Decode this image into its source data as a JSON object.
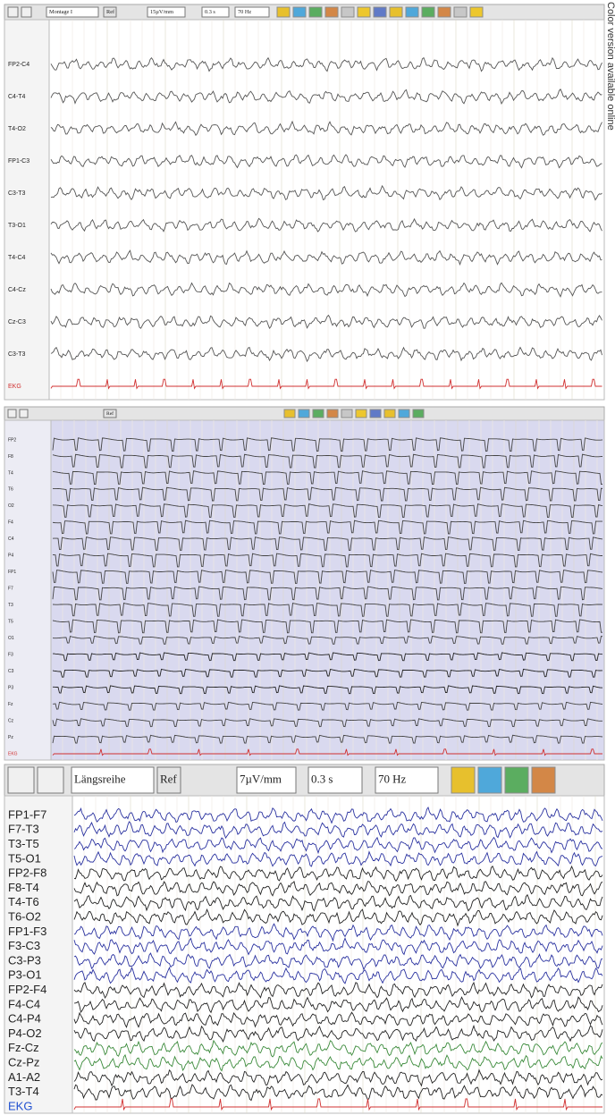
{
  "caption": "Color version available online",
  "panels": [
    {
      "toolbar": {
        "montage": "Montage I",
        "ref": "Ref",
        "sensitivity": "15µV/mm",
        "time_constant": "0.3 s",
        "filter": "70 Hz"
      },
      "channels": [
        "FP2-C4",
        "C4-T4",
        "T4-O2",
        "FP1-C3",
        "C3-T3",
        "T3-O1",
        "T4-C4",
        "C4-Cz",
        "Cz-C3",
        "C3-T3",
        "EKG"
      ]
    },
    {
      "toolbar": {
        "ref": "Ref"
      },
      "channels": [
        "FP2",
        "F8",
        "T4",
        "T6",
        "O2",
        "F4",
        "C4",
        "P4",
        "FP1",
        "F7",
        "T3",
        "T5",
        "O1",
        "F3",
        "C3",
        "P3",
        "Fz",
        "Cz",
        "Pz",
        "EKG"
      ]
    },
    {
      "toolbar": {
        "montage": "Längsreihe",
        "ref": "Ref",
        "sensitivity": "7µV/mm",
        "time_constant": "0.3 s",
        "filter": "70 Hz"
      },
      "channels": [
        "FP1-F7",
        "F7-T3",
        "T3-T5",
        "T5-O1",
        "FP2-F8",
        "F8-T4",
        "T4-T6",
        "T6-O2",
        "FP1-F3",
        "F3-C3",
        "C3-P3",
        "P3-O1",
        "FP2-F4",
        "F4-C4",
        "C4-P4",
        "P4-O2",
        "Fz-Cz",
        "Cz-Pz",
        "A1-A2",
        "T3-T4",
        "EKG"
      ]
    }
  ]
}
